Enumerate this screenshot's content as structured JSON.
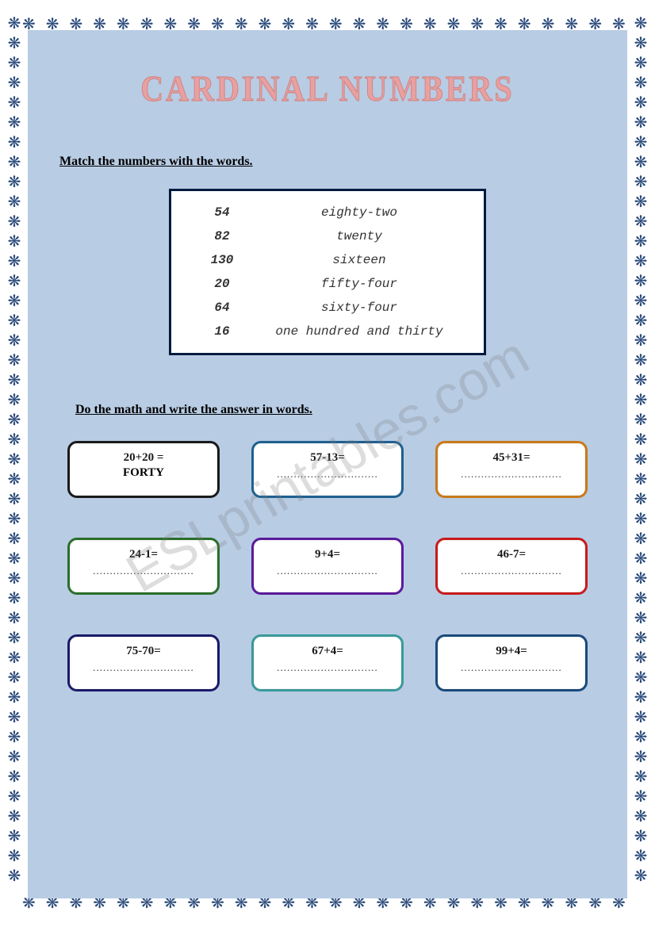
{
  "page": {
    "title": "CARDINAL NUMBERS",
    "background_color": "#b8cce4",
    "title_color": "#e8a0a0",
    "border_glyph": "❋",
    "border_color": "#2a4a7a",
    "watermark": "ESLprintables.com"
  },
  "section1": {
    "instruction": "Match the numbers with the words.",
    "box_border_color": "#001a40",
    "font_family": "cursive",
    "rows": [
      {
        "num": "54",
        "word": "eighty-two"
      },
      {
        "num": "82",
        "word": "twenty"
      },
      {
        "num": "130",
        "word": "sixteen"
      },
      {
        "num": "20",
        "word": "fifty-four"
      },
      {
        "num": "64",
        "word": "sixty-four"
      },
      {
        "num": "16",
        "word": "one hundred and thirty"
      }
    ]
  },
  "section2": {
    "instruction": "Do the math and write the answer in words.",
    "dots": "..............................",
    "boxes": [
      {
        "eq": "20+20 =",
        "answer": "FORTY",
        "border_color": "#1a1a1a"
      },
      {
        "eq": "57-13=",
        "answer": "",
        "border_color": "#1f6090"
      },
      {
        "eq": "45+31=",
        "answer": "",
        "border_color": "#c87a1a"
      },
      {
        "eq": "24-1=",
        "answer": "",
        "border_color": "#2a6e2a"
      },
      {
        "eq": "9+4=",
        "answer": "",
        "border_color": "#5a1a9a"
      },
      {
        "eq": "46-7=",
        "answer": "",
        "border_color": "#c81a1a"
      },
      {
        "eq": "75-70=",
        "answer": "",
        "border_color": "#1a1a6a"
      },
      {
        "eq": "67+4=",
        "answer": "",
        "border_color": "#3a9a9a"
      },
      {
        "eq": "99+4=",
        "answer": "",
        "border_color": "#1a4a7a"
      }
    ]
  }
}
